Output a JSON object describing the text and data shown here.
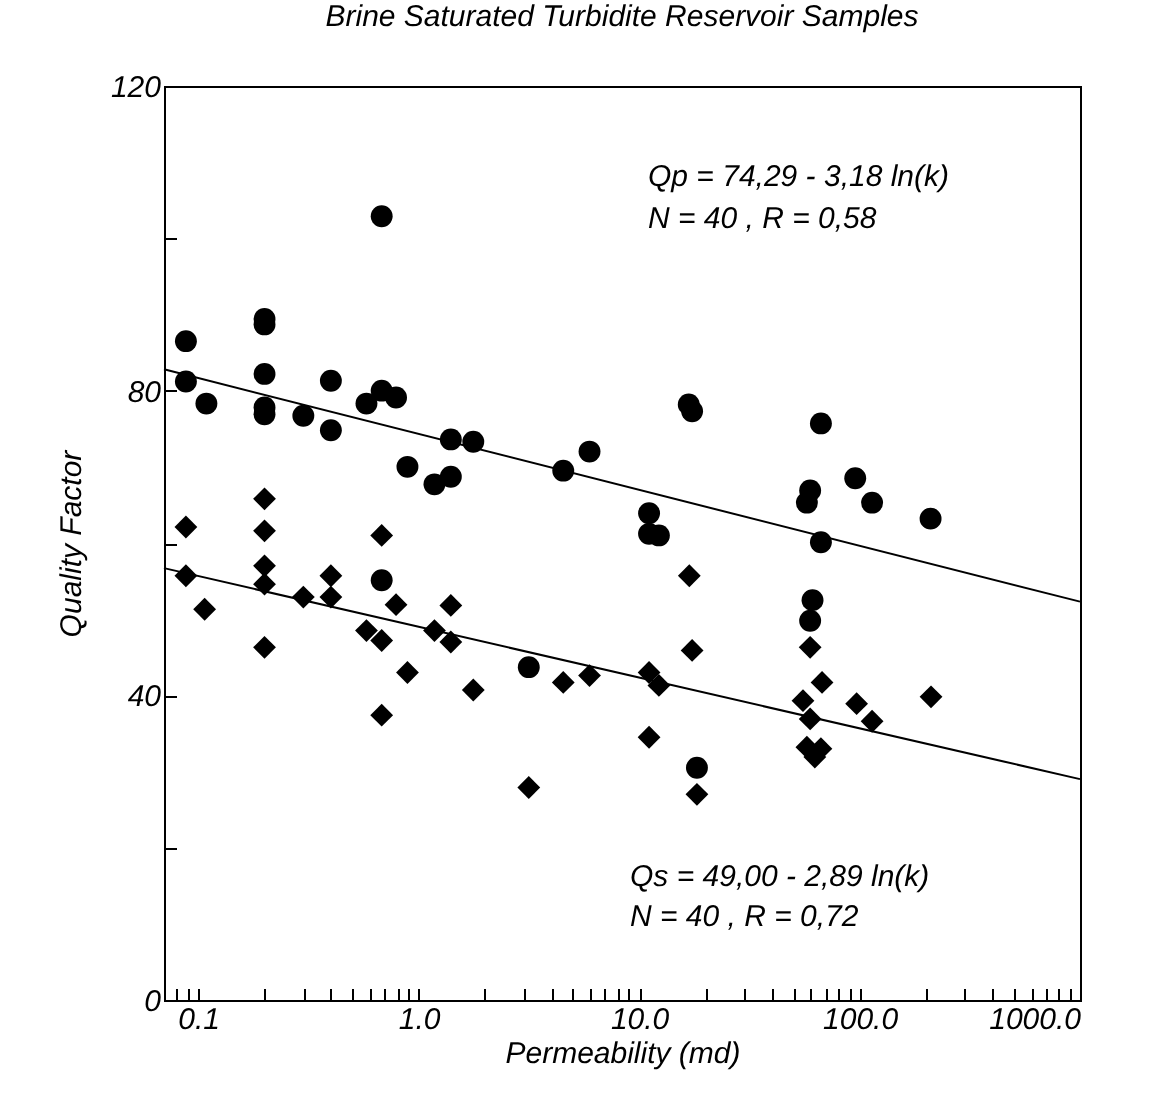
{
  "chart_data": {
    "type": "scatter",
    "title": "Brine Saturated Turbidite Reservoir Samples",
    "xlabel": "Permeability (md)",
    "ylabel": "Quality Factor",
    "log": "x",
    "grid": false,
    "xlim": [
      0.07,
      1000
    ],
    "ylim": [
      0,
      120
    ],
    "xticks": [
      {
        "value": 0.08,
        "label": null
      },
      {
        "value": 0.09,
        "label": null
      },
      {
        "value": 0.1,
        "label": "0.1"
      },
      {
        "value": 0.2,
        "label": null
      },
      {
        "value": 0.3,
        "label": null
      },
      {
        "value": 0.4,
        "label": null
      },
      {
        "value": 0.5,
        "label": null
      },
      {
        "value": 0.6,
        "label": null
      },
      {
        "value": 0.7,
        "label": null
      },
      {
        "value": 0.8,
        "label": null
      },
      {
        "value": 0.9,
        "label": null
      },
      {
        "value": 1,
        "label": "1.0"
      },
      {
        "value": 2,
        "label": null
      },
      {
        "value": 3,
        "label": null
      },
      {
        "value": 4,
        "label": null
      },
      {
        "value": 5,
        "label": null
      },
      {
        "value": 6,
        "label": null
      },
      {
        "value": 7,
        "label": null
      },
      {
        "value": 8,
        "label": null
      },
      {
        "value": 9,
        "label": null
      },
      {
        "value": 10,
        "label": "10.0"
      },
      {
        "value": 20,
        "label": null
      },
      {
        "value": 30,
        "label": null
      },
      {
        "value": 40,
        "label": null
      },
      {
        "value": 50,
        "label": null
      },
      {
        "value": 60,
        "label": null
      },
      {
        "value": 70,
        "label": null
      },
      {
        "value": 80,
        "label": null
      },
      {
        "value": 90,
        "label": null
      },
      {
        "value": 100,
        "label": "100.0"
      },
      {
        "value": 200,
        "label": null
      },
      {
        "value": 300,
        "label": null
      },
      {
        "value": 400,
        "label": null
      },
      {
        "value": 500,
        "label": null
      },
      {
        "value": 600,
        "label": null
      },
      {
        "value": 700,
        "label": null
      },
      {
        "value": 800,
        "label": null
      },
      {
        "value": 900,
        "label": null
      },
      {
        "value": 1000,
        "label": "1000.0"
      }
    ],
    "yticks": [
      0,
      {
        "value": 20,
        "label": null
      },
      40,
      {
        "value": 60,
        "label": null
      },
      80,
      {
        "value": 100,
        "label": null
      },
      120
    ],
    "annotations": [
      "Qp = 74,29 - 3,18 ln(k)",
      "N = 40 , R = 0,58",
      "Qs = 49,00 - 2,89 ln(k)",
      "N = 40 , R = 0,72"
    ],
    "series": [
      {
        "marker": "circle",
        "color": "#000000",
        "x": [
          0.088,
          0.088,
          0.109,
          0.2,
          0.2,
          0.2,
          0.2,
          0.2,
          0.3,
          0.4,
          0.4,
          0.58,
          0.68,
          0.79,
          0.68,
          0.89,
          1.18,
          1.4,
          1.4,
          1.77,
          4.53,
          5.96,
          16.8,
          17.4,
          66.8,
          11.1,
          11.1,
          12.3,
          95.6,
          114,
          210,
          59.7,
          57.7,
          66.8,
          61.2,
          59.7,
          18.3,
          0.68,
          3.16
        ],
        "values": [
          86.5,
          81.2,
          78.3,
          89.4,
          88.7,
          82.2,
          77.8,
          76.9,
          76.7,
          81.3,
          74.8,
          78.3,
          80.0,
          79.1,
          102.9,
          70.0,
          67.7,
          68.7,
          73.6,
          73.3,
          69.5,
          72.0,
          78.2,
          77.3,
          75.7,
          63.9,
          61.2,
          61.0,
          68.5,
          65.3,
          63.2,
          66.9,
          65.3,
          60.1,
          52.5,
          49.8,
          30.5,
          55.1,
          43.7
        ]
      },
      {
        "marker": "diamond",
        "color": "#000000",
        "x": [
          0.088,
          0.2,
          0.2,
          0.68,
          0.088,
          0.2,
          0.4,
          0.2,
          0.107,
          0.2,
          0.3,
          0.4,
          0.58,
          0.68,
          0.79,
          0.89,
          0.68,
          1.18,
          1.4,
          1.4,
          1.77,
          3.16,
          4.53,
          5.96,
          16.9,
          17.4,
          11.1,
          12.3,
          11.1,
          18.3,
          59.7,
          67.6,
          55.4,
          59.7,
          97,
          114,
          211,
          57.7,
          66.8,
          62.7
        ],
        "values": [
          62.1,
          65.8,
          61.6,
          61.0,
          55.7,
          57.0,
          55.7,
          54.6,
          51.3,
          46.3,
          52.9,
          52.9,
          48.5,
          47.2,
          51.9,
          43.0,
          37.4,
          48.5,
          51.8,
          47.0,
          40.7,
          27.9,
          41.7,
          42.6,
          55.7,
          45.9,
          43.0,
          41.3,
          34.5,
          27.0,
          46.3,
          41.7,
          39.3,
          36.9,
          38.9,
          36.6,
          39.8,
          33.2,
          33.0,
          31.9
        ]
      },
      {
        "type": "line",
        "color": "#000000",
        "x": [
          0.07,
          1000
        ],
        "values": [
          82.8,
          52.3
        ]
      },
      {
        "type": "line",
        "color": "#000000",
        "x": [
          0.07,
          1000
        ],
        "values": [
          56.7,
          29.0
        ]
      }
    ]
  }
}
